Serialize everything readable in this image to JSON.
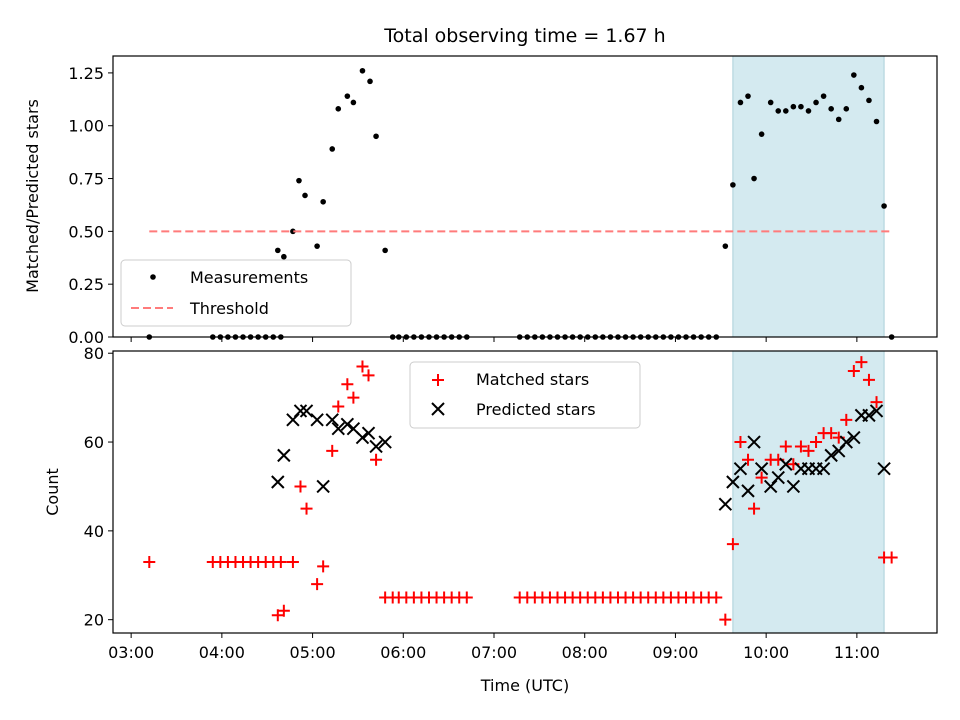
{
  "title": "Total observing time = 1.67 h",
  "xlabel": "Time (UTC)",
  "colors": {
    "measurement": "#000000",
    "threshold": "#ff7b7b",
    "matched": "#ff0000",
    "predicted": "#000000",
    "highlight": "#d4eaf0",
    "highlight_edge": "#aacfd9"
  },
  "chart_data": [
    {
      "type": "scatter",
      "ylabel": "Matched/Predicted stars",
      "xlim": [
        "02:48",
        "11:53"
      ],
      "ylim": [
        0,
        1.33
      ],
      "xticks": [
        "03:00",
        "04:00",
        "05:00",
        "06:00",
        "07:00",
        "08:00",
        "09:00",
        "10:00",
        "11:00"
      ],
      "yticks": [
        "0.00",
        "0.25",
        "0.50",
        "0.75",
        "1.00",
        "1.25"
      ],
      "legend": {
        "placement": "lower left",
        "entries": [
          "Measurements",
          "Threshold"
        ]
      },
      "highlight": [
        "09:38",
        "11:18"
      ],
      "series": [
        {
          "name": "Measurements",
          "marker": "dot",
          "points": [
            [
              "03:12",
              0
            ],
            [
              "03:54",
              0
            ],
            [
              "03:59",
              0
            ],
            [
              "04:04",
              0
            ],
            [
              "04:09",
              0
            ],
            [
              "04:14",
              0
            ],
            [
              "04:19",
              0
            ],
            [
              "04:24",
              0
            ],
            [
              "04:29",
              0
            ],
            [
              "04:34",
              0
            ],
            [
              "04:39",
              0
            ],
            [
              "04:37",
              0.41
            ],
            [
              "04:41",
              0.38
            ],
            [
              "04:47",
              0.5
            ],
            [
              "04:51",
              0.74
            ],
            [
              "04:55",
              0.67
            ],
            [
              "05:03",
              0.43
            ],
            [
              "05:07",
              0.64
            ],
            [
              "05:13",
              0.89
            ],
            [
              "05:17",
              1.08
            ],
            [
              "05:23",
              1.14
            ],
            [
              "05:27",
              1.11
            ],
            [
              "05:33",
              1.26
            ],
            [
              "05:38",
              1.21
            ],
            [
              "05:42",
              0.95
            ],
            [
              "05:48",
              0.41
            ],
            [
              "05:53",
              0
            ],
            [
              "05:57",
              0
            ],
            [
              "06:02",
              0
            ],
            [
              "06:07",
              0
            ],
            [
              "06:12",
              0
            ],
            [
              "06:17",
              0
            ],
            [
              "06:22",
              0
            ],
            [
              "06:27",
              0
            ],
            [
              "06:32",
              0
            ],
            [
              "06:37",
              0
            ],
            [
              "06:42",
              0
            ],
            [
              "07:17",
              0
            ],
            [
              "07:22",
              0
            ],
            [
              "07:27",
              0
            ],
            [
              "07:32",
              0
            ],
            [
              "07:37",
              0
            ],
            [
              "07:42",
              0
            ],
            [
              "07:47",
              0
            ],
            [
              "07:52",
              0
            ],
            [
              "07:57",
              0
            ],
            [
              "08:02",
              0
            ],
            [
              "08:07",
              0
            ],
            [
              "08:12",
              0
            ],
            [
              "08:17",
              0
            ],
            [
              "08:22",
              0
            ],
            [
              "08:27",
              0
            ],
            [
              "08:32",
              0
            ],
            [
              "08:37",
              0
            ],
            [
              "08:42",
              0
            ],
            [
              "08:47",
              0
            ],
            [
              "08:52",
              0
            ],
            [
              "08:57",
              0
            ],
            [
              "09:02",
              0
            ],
            [
              "09:07",
              0
            ],
            [
              "09:12",
              0
            ],
            [
              "09:17",
              0
            ],
            [
              "09:22",
              0
            ],
            [
              "09:27",
              0
            ],
            [
              "09:33",
              0.43
            ],
            [
              "09:38",
              0.72
            ],
            [
              "09:43",
              1.11
            ],
            [
              "09:48",
              1.14
            ],
            [
              "09:52",
              0.75
            ],
            [
              "09:57",
              0.96
            ],
            [
              "10:03",
              1.11
            ],
            [
              "10:08",
              1.07
            ],
            [
              "10:13",
              1.07
            ],
            [
              "10:18",
              1.09
            ],
            [
              "10:23",
              1.09
            ],
            [
              "10:28",
              1.07
            ],
            [
              "10:33",
              1.11
            ],
            [
              "10:38",
              1.14
            ],
            [
              "10:43",
              1.08
            ],
            [
              "10:48",
              1.03
            ],
            [
              "10:53",
              1.08
            ],
            [
              "10:58",
              1.24
            ],
            [
              "11:03",
              1.18
            ],
            [
              "11:08",
              1.12
            ],
            [
              "11:13",
              1.02
            ],
            [
              "11:18",
              0.62
            ],
            [
              "11:23",
              0
            ]
          ]
        },
        {
          "name": "Threshold",
          "marker": "dashed-line",
          "points": [
            [
              "03:12",
              0.5
            ],
            [
              "11:23",
              0.5
            ]
          ]
        }
      ]
    },
    {
      "type": "scatter",
      "ylabel": "Count",
      "xlim": [
        "02:48",
        "11:53"
      ],
      "ylim": [
        17,
        80.5
      ],
      "xticks": [
        "03:00",
        "04:00",
        "05:00",
        "06:00",
        "07:00",
        "08:00",
        "09:00",
        "10:00",
        "11:00"
      ],
      "yticks": [
        "20",
        "40",
        "60",
        "80"
      ],
      "legend": {
        "placement": "upper center",
        "entries": [
          "Matched stars",
          "Predicted stars"
        ]
      },
      "highlight": [
        "09:38",
        "11:18"
      ],
      "series": [
        {
          "name": "Matched stars",
          "marker": "plus",
          "points": [
            [
              "03:12",
              33
            ],
            [
              "03:54",
              33
            ],
            [
              "03:59",
              33
            ],
            [
              "04:04",
              33
            ],
            [
              "04:09",
              33
            ],
            [
              "04:14",
              33
            ],
            [
              "04:19",
              33
            ],
            [
              "04:24",
              33
            ],
            [
              "04:29",
              33
            ],
            [
              "04:34",
              33
            ],
            [
              "04:39",
              33
            ],
            [
              "04:37",
              21
            ],
            [
              "04:41",
              22
            ],
            [
              "04:47",
              33
            ],
            [
              "04:52",
              50
            ],
            [
              "04:56",
              45
            ],
            [
              "05:03",
              28
            ],
            [
              "05:07",
              32
            ],
            [
              "05:13",
              58
            ],
            [
              "05:17",
              68
            ],
            [
              "05:23",
              73
            ],
            [
              "05:27",
              70
            ],
            [
              "05:33",
              77
            ],
            [
              "05:37",
              75
            ],
            [
              "05:42",
              56
            ],
            [
              "05:48",
              25
            ],
            [
              "05:53",
              25
            ],
            [
              "05:57",
              25
            ],
            [
              "06:02",
              25
            ],
            [
              "06:07",
              25
            ],
            [
              "06:12",
              25
            ],
            [
              "06:17",
              25
            ],
            [
              "06:22",
              25
            ],
            [
              "06:27",
              25
            ],
            [
              "06:32",
              25
            ],
            [
              "06:37",
              25
            ],
            [
              "06:42",
              25
            ],
            [
              "07:17",
              25
            ],
            [
              "07:22",
              25
            ],
            [
              "07:27",
              25
            ],
            [
              "07:32",
              25
            ],
            [
              "07:37",
              25
            ],
            [
              "07:42",
              25
            ],
            [
              "07:47",
              25
            ],
            [
              "07:52",
              25
            ],
            [
              "07:57",
              25
            ],
            [
              "08:02",
              25
            ],
            [
              "08:07",
              25
            ],
            [
              "08:12",
              25
            ],
            [
              "08:17",
              25
            ],
            [
              "08:22",
              25
            ],
            [
              "08:27",
              25
            ],
            [
              "08:32",
              25
            ],
            [
              "08:37",
              25
            ],
            [
              "08:42",
              25
            ],
            [
              "08:47",
              25
            ],
            [
              "08:52",
              25
            ],
            [
              "08:57",
              25
            ],
            [
              "09:02",
              25
            ],
            [
              "09:07",
              25
            ],
            [
              "09:12",
              25
            ],
            [
              "09:17",
              25
            ],
            [
              "09:22",
              25
            ],
            [
              "09:27",
              25
            ],
            [
              "09:33",
              20
            ],
            [
              "09:38",
              37
            ],
            [
              "09:43",
              60
            ],
            [
              "09:48",
              56
            ],
            [
              "09:52",
              45
            ],
            [
              "09:57",
              52
            ],
            [
              "10:03",
              56
            ],
            [
              "10:08",
              56
            ],
            [
              "10:13",
              59
            ],
            [
              "10:18",
              55
            ],
            [
              "10:23",
              59
            ],
            [
              "10:28",
              58
            ],
            [
              "10:33",
              60
            ],
            [
              "10:38",
              62
            ],
            [
              "10:43",
              62
            ],
            [
              "10:48",
              61
            ],
            [
              "10:53",
              65
            ],
            [
              "10:58",
              76
            ],
            [
              "11:03",
              78
            ],
            [
              "11:08",
              74
            ],
            [
              "11:13",
              69
            ],
            [
              "11:18",
              34
            ],
            [
              "11:23",
              34
            ]
          ]
        },
        {
          "name": "Predicted stars",
          "marker": "x",
          "points": [
            [
              "04:37",
              51
            ],
            [
              "04:41",
              57
            ],
            [
              "04:47",
              65
            ],
            [
              "04:52",
              67
            ],
            [
              "04:56",
              67
            ],
            [
              "05:03",
              65
            ],
            [
              "05:07",
              50
            ],
            [
              "05:13",
              65
            ],
            [
              "05:17",
              63
            ],
            [
              "05:23",
              64
            ],
            [
              "05:27",
              63
            ],
            [
              "05:33",
              61
            ],
            [
              "05:37",
              62
            ],
            [
              "05:42",
              59
            ],
            [
              "05:48",
              60
            ],
            [
              "09:33",
              46
            ],
            [
              "09:38",
              51
            ],
            [
              "09:43",
              54
            ],
            [
              "09:48",
              49
            ],
            [
              "09:52",
              60
            ],
            [
              "09:57",
              54
            ],
            [
              "10:03",
              50
            ],
            [
              "10:08",
              52
            ],
            [
              "10:13",
              55
            ],
            [
              "10:18",
              50
            ],
            [
              "10:23",
              54
            ],
            [
              "10:28",
              54
            ],
            [
              "10:33",
              54
            ],
            [
              "10:38",
              54
            ],
            [
              "10:43",
              57
            ],
            [
              "10:48",
              58
            ],
            [
              "10:53",
              60
            ],
            [
              "10:58",
              61
            ],
            [
              "11:03",
              66
            ],
            [
              "11:08",
              66
            ],
            [
              "11:13",
              67
            ],
            [
              "11:18",
              54
            ]
          ]
        }
      ]
    }
  ]
}
